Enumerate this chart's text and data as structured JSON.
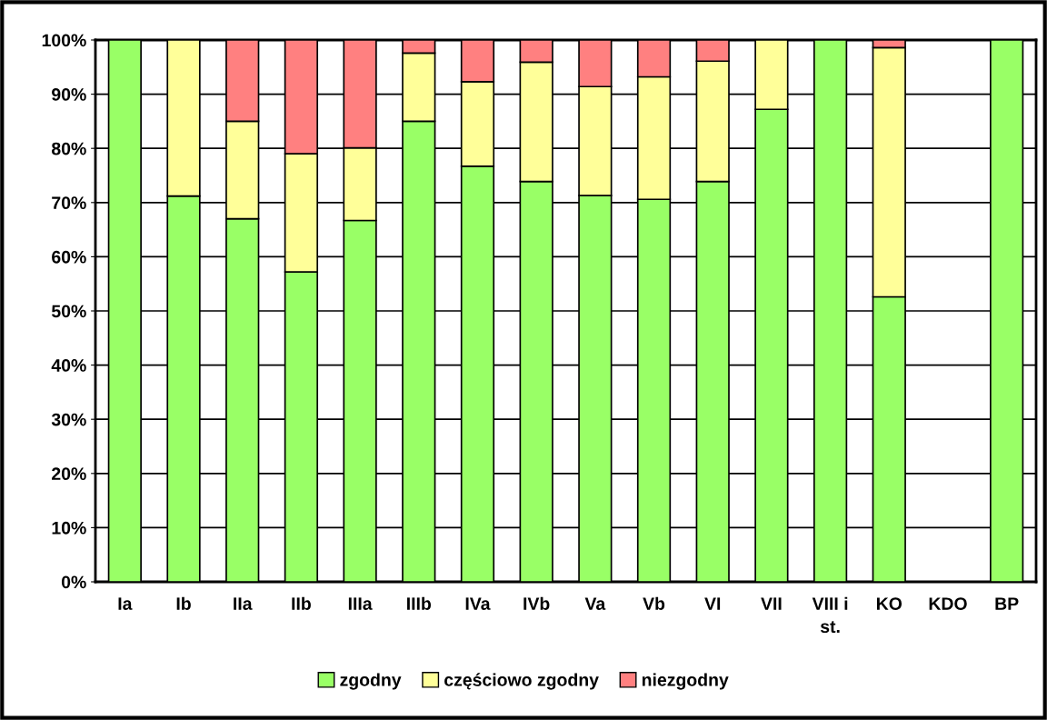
{
  "chart_data": {
    "type": "bar",
    "stacked": true,
    "categories": [
      "Ia",
      "Ib",
      "IIa",
      "IIb",
      "IIIa",
      "IIIb",
      "IVa",
      "IVb",
      "Va",
      "Vb",
      "VI",
      "VII",
      "VIII i\nst.",
      "KO",
      "KDO",
      "BP"
    ],
    "series": [
      {
        "name": "zgodny",
        "color": "#99ff66",
        "values": [
          100,
          71.2,
          67,
          57.2,
          66.7,
          85,
          76.7,
          73.9,
          71.3,
          70.6,
          73.9,
          87.2,
          100,
          52.6,
          null,
          100
        ]
      },
      {
        "name": "częściowo zgodny",
        "color": "#ffff99",
        "values": [
          null,
          28.8,
          18,
          21.8,
          13.4,
          12.6,
          15.6,
          22,
          20.1,
          22.6,
          22.2,
          12.8,
          null,
          46,
          null,
          null
        ]
      },
      {
        "name": "niezgodny",
        "color": "#ff8080",
        "values": [
          null,
          null,
          15,
          21,
          19.9,
          2.4,
          7.7,
          4.1,
          8.6,
          6.8,
          3.9,
          null,
          null,
          1.4,
          null,
          null
        ]
      }
    ],
    "ylim": [
      0,
      100
    ],
    "yticks": [
      {
        "value": 0,
        "label": "0%"
      },
      {
        "value": 10,
        "label": "10%"
      },
      {
        "value": 20,
        "label": "20%"
      },
      {
        "value": 30,
        "label": "30%"
      },
      {
        "value": 40,
        "label": "40%"
      },
      {
        "value": 50,
        "label": "50%"
      },
      {
        "value": 60,
        "label": "60%"
      },
      {
        "value": 70,
        "label": "70%"
      },
      {
        "value": 80,
        "label": "80%"
      },
      {
        "value": 90,
        "label": "90%"
      },
      {
        "value": 100,
        "label": "100%"
      }
    ],
    "grid": "y",
    "legend": "bottom"
  }
}
